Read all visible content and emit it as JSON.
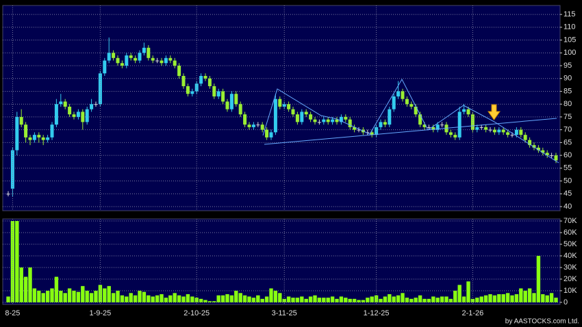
{
  "chart_data": [
    {
      "type": "candlestick",
      "up_color": "#33ccee",
      "down_color": "#99ee33",
      "flat_color": "#dddddd",
      "grid": true,
      "ylim": [
        38.4,
        118.5
      ],
      "yticks": [
        40,
        45,
        50,
        55,
        60,
        65,
        70,
        75,
        80,
        85,
        90,
        95,
        100,
        105,
        110,
        115
      ],
      "ohlc": [
        [
          45,
          46,
          44,
          45
        ],
        [
          47,
          63,
          44,
          62
        ],
        [
          62,
          77,
          60,
          75
        ],
        [
          75,
          78,
          71,
          72
        ],
        [
          72,
          73,
          65,
          67
        ],
        [
          67,
          68,
          64,
          66
        ],
        [
          66,
          69,
          65,
          68
        ],
        [
          68,
          69,
          65,
          67
        ],
        [
          67,
          68,
          64,
          66
        ],
        [
          66,
          68,
          65,
          67
        ],
        [
          67,
          73,
          66,
          72
        ],
        [
          72,
          82,
          71,
          80
        ],
        [
          80,
          84,
          79,
          81
        ],
        [
          81,
          82,
          78,
          79
        ],
        [
          79,
          80,
          75,
          76
        ],
        [
          76,
          77,
          74,
          75
        ],
        [
          75,
          78,
          74,
          77
        ],
        [
          77,
          78,
          70,
          73
        ],
        [
          73,
          79,
          72,
          78
        ],
        [
          78,
          82,
          77,
          80
        ],
        [
          80,
          81,
          79,
          80
        ],
        [
          80,
          93,
          79,
          92
        ],
        [
          92,
          98,
          91,
          97
        ],
        [
          97,
          106,
          96,
          100
        ],
        [
          100,
          101,
          97,
          98
        ],
        [
          98,
          99,
          95,
          96
        ],
        [
          96,
          97,
          94,
          95
        ],
        [
          95,
          100,
          94,
          99
        ],
        [
          99,
          100,
          97,
          98
        ],
        [
          98,
          99,
          96,
          97
        ],
        [
          97,
          101,
          96,
          100
        ],
        [
          100,
          104,
          99,
          102
        ],
        [
          102,
          103,
          97,
          98
        ],
        [
          98,
          99,
          96,
          97
        ],
        [
          97,
          98,
          96,
          97
        ],
        [
          97,
          98,
          95,
          96
        ],
        [
          96,
          99,
          95,
          98
        ],
        [
          98,
          99,
          96,
          97
        ],
        [
          97,
          98,
          94,
          95
        ],
        [
          95,
          96,
          90,
          91
        ],
        [
          91,
          92,
          86,
          87
        ],
        [
          87,
          88,
          83,
          84
        ],
        [
          84,
          86,
          83,
          85
        ],
        [
          85,
          89,
          84,
          88
        ],
        [
          88,
          92,
          87,
          91
        ],
        [
          91,
          92,
          89,
          90
        ],
        [
          90,
          91,
          86,
          87
        ],
        [
          87,
          88,
          82,
          83
        ],
        [
          83,
          86,
          82,
          85
        ],
        [
          85,
          86,
          80,
          81
        ],
        [
          81,
          82,
          77,
          78
        ],
        [
          78,
          85,
          77,
          84
        ],
        [
          84,
          85,
          79,
          80
        ],
        [
          80,
          81,
          75,
          76
        ],
        [
          76,
          77,
          71,
          72
        ],
        [
          72,
          73,
          70,
          71
        ],
        [
          71,
          73,
          70,
          72
        ],
        [
          72,
          73,
          71,
          72
        ],
        [
          72,
          73,
          69,
          70
        ],
        [
          70,
          71,
          66,
          67
        ],
        [
          67,
          70,
          66,
          69
        ],
        [
          69,
          84,
          68,
          82
        ],
        [
          82,
          83,
          78,
          79
        ],
        [
          79,
          81,
          78,
          80
        ],
        [
          80,
          81,
          77,
          78
        ],
        [
          78,
          79,
          75,
          76
        ],
        [
          76,
          77,
          72,
          73
        ],
        [
          73,
          78,
          72,
          77
        ],
        [
          77,
          78,
          75,
          76
        ],
        [
          76,
          77,
          73,
          74
        ],
        [
          74,
          75,
          72,
          73
        ],
        [
          73,
          74,
          72,
          73
        ],
        [
          73,
          75,
          72,
          74
        ],
        [
          74,
          75,
          72,
          73
        ],
        [
          73,
          75,
          72,
          74
        ],
        [
          74,
          75,
          72,
          73
        ],
        [
          73,
          76,
          72,
          75
        ],
        [
          75,
          76,
          73,
          74
        ],
        [
          74,
          75,
          70,
          71
        ],
        [
          71,
          72,
          69,
          70
        ],
        [
          70,
          71,
          69,
          70
        ],
        [
          70,
          71,
          68,
          69
        ],
        [
          69,
          70,
          68,
          69
        ],
        [
          69,
          70,
          67,
          68
        ],
        [
          68,
          72,
          67,
          71
        ],
        [
          71,
          74,
          70,
          73
        ],
        [
          73,
          74,
          71,
          72
        ],
        [
          72,
          79,
          71,
          78
        ],
        [
          78,
          84,
          77,
          83
        ],
        [
          83,
          89,
          82,
          85
        ],
        [
          85,
          86,
          81,
          82
        ],
        [
          82,
          83,
          79,
          80
        ],
        [
          80,
          81,
          78,
          79
        ],
        [
          79,
          80,
          75,
          76
        ],
        [
          76,
          77,
          71,
          72
        ],
        [
          72,
          73,
          70,
          71
        ],
        [
          71,
          72,
          70,
          71
        ],
        [
          71,
          72,
          69,
          70
        ],
        [
          70,
          73,
          69,
          72
        ],
        [
          72,
          73,
          71,
          72
        ],
        [
          72,
          73,
          68,
          69
        ],
        [
          69,
          70,
          67,
          68
        ],
        [
          68,
          69,
          66,
          67
        ],
        [
          67,
          79,
          66,
          77
        ],
        [
          77,
          80,
          76,
          78
        ],
        [
          78,
          79,
          75,
          76
        ],
        [
          76,
          77,
          69,
          70
        ],
        [
          70,
          72,
          69,
          71
        ],
        [
          71,
          72,
          70,
          71
        ],
        [
          71,
          72,
          69,
          70
        ],
        [
          70,
          71,
          69,
          70
        ],
        [
          70,
          71,
          68,
          69
        ],
        [
          69,
          71,
          68,
          70
        ],
        [
          70,
          71,
          68,
          69
        ],
        [
          69,
          70,
          67,
          68
        ],
        [
          68,
          69,
          67,
          68
        ],
        [
          68,
          71,
          67,
          70
        ],
        [
          70,
          71,
          67,
          68
        ],
        [
          68,
          69,
          65,
          66
        ],
        [
          66,
          67,
          63,
          64
        ],
        [
          64,
          65,
          62,
          63
        ],
        [
          63,
          64,
          61,
          62
        ],
        [
          62,
          63,
          60,
          61
        ],
        [
          61,
          62,
          59,
          60
        ],
        [
          60,
          61,
          59,
          60
        ],
        [
          60,
          61,
          57,
          58
        ]
      ]
    },
    {
      "type": "bar",
      "color": "#88ff11",
      "grid": true,
      "ylim": [
        -1800,
        71800
      ],
      "yticks": [
        {
          "value": 0,
          "label": "0"
        },
        {
          "value": 10000,
          "label": "10K"
        },
        {
          "value": 20000,
          "label": "20K"
        },
        {
          "value": 30000,
          "label": "30K"
        },
        {
          "value": 40000,
          "label": "40K"
        },
        {
          "value": 50000,
          "label": "50K"
        },
        {
          "value": 60000,
          "label": "60K"
        },
        {
          "value": 70000,
          "label": "70K"
        }
      ],
      "categories": [
        null,
        "8-25",
        null,
        null,
        null,
        null,
        null,
        null,
        null,
        null,
        null,
        null,
        null,
        null,
        null,
        null,
        null,
        null,
        null,
        null,
        null,
        "1-9-25",
        null,
        null,
        null,
        null,
        null,
        null,
        null,
        null,
        null,
        null,
        null,
        null,
        null,
        null,
        null,
        null,
        null,
        null,
        null,
        null,
        null,
        "2-10-25",
        null,
        null,
        null,
        null,
        null,
        null,
        null,
        null,
        null,
        null,
        null,
        null,
        null,
        null,
        null,
        null,
        null,
        null,
        null,
        "3-11-25",
        null,
        null,
        null,
        null,
        null,
        null,
        null,
        null,
        null,
        null,
        null,
        null,
        null,
        null,
        null,
        null,
        null,
        null,
        null,
        null,
        "1-12-25",
        null,
        null,
        null,
        null,
        null,
        null,
        null,
        null,
        null,
        null,
        null,
        null,
        null,
        null,
        null,
        null,
        null,
        null,
        null,
        null,
        null,
        "2-1-26",
        null,
        null,
        null,
        null,
        null,
        null,
        null,
        null,
        null,
        null,
        null,
        null,
        null,
        null,
        null,
        null,
        null,
        null,
        null
      ],
      "values": [
        5000,
        70000,
        70000,
        30000,
        22000,
        30000,
        12000,
        10000,
        8000,
        10000,
        12000,
        22000,
        10000,
        8000,
        12000,
        10000,
        9000,
        14000,
        10000,
        8000,
        10000,
        15000,
        12000,
        14000,
        8000,
        10000,
        6000,
        5000,
        8000,
        6000,
        10000,
        9000,
        6000,
        5000,
        6000,
        7000,
        4000,
        6000,
        8000,
        6000,
        5000,
        7000,
        5000,
        4000,
        3000,
        2000,
        1000,
        1000,
        6000,
        6000,
        7000,
        6000,
        10000,
        8000,
        6000,
        5000,
        4000,
        6000,
        3000,
        5000,
        12000,
        10000,
        8000,
        3000,
        5000,
        4000,
        4000,
        5000,
        3000,
        5000,
        6000,
        4000,
        4000,
        4000,
        5000,
        3000,
        5000,
        4000,
        3000,
        3000,
        2000,
        2000,
        4000,
        5000,
        6000,
        3000,
        5000,
        7000,
        5000,
        6000,
        8000,
        4000,
        3000,
        4000,
        6000,
        3000,
        3000,
        5000,
        4000,
        5000,
        5000,
        3000,
        10000,
        15000,
        5000,
        18000,
        3000,
        4000,
        5000,
        6000,
        7000,
        6000,
        7000,
        7000,
        8000,
        6000,
        7000,
        12000,
        10000,
        12000,
        8000,
        40000,
        7000,
        6000,
        8000,
        4000
      ]
    }
  ],
  "watermark": "by AASTOCKS.com Ltd."
}
